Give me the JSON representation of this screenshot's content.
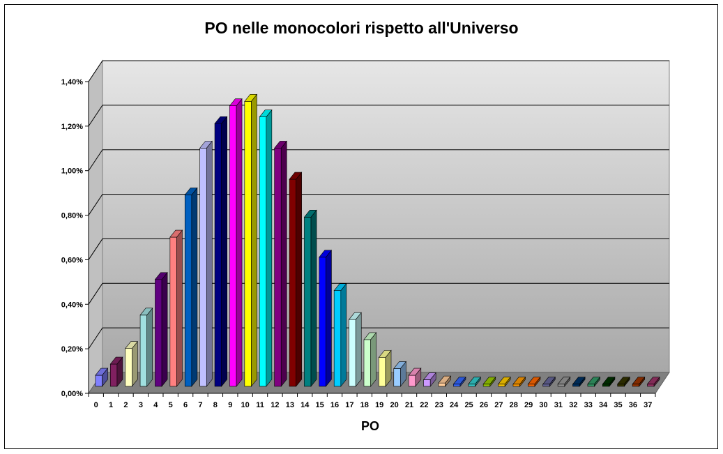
{
  "chart_data": {
    "type": "bar",
    "title": "PO nelle monocolori rispetto all'Universo",
    "xlabel": "PO",
    "ylabel": "",
    "ylim": [
      0,
      1.4
    ],
    "y_ticks": [
      "0,00%",
      "0,20%",
      "0,40%",
      "0,60%",
      "0,80%",
      "1,00%",
      "1,20%",
      "1,40%"
    ],
    "y_tick_values": [
      0,
      0.2,
      0.4,
      0.6,
      0.8,
      1.0,
      1.2,
      1.4
    ],
    "grid": true,
    "legend": "none",
    "categories": [
      "0",
      "1",
      "2",
      "3",
      "4",
      "5",
      "6",
      "7",
      "8",
      "9",
      "10",
      "11",
      "12",
      "13",
      "14",
      "15",
      "16",
      "17",
      "18",
      "19",
      "20",
      "21",
      "22",
      "23",
      "24",
      "25",
      "26",
      "27",
      "28",
      "29",
      "30",
      "31",
      "32",
      "33",
      "34",
      "35",
      "36",
      "37"
    ],
    "values": [
      0.05,
      0.1,
      0.17,
      0.32,
      0.48,
      0.67,
      0.86,
      1.07,
      1.18,
      1.26,
      1.28,
      1.21,
      1.07,
      0.93,
      0.76,
      0.58,
      0.43,
      0.3,
      0.21,
      0.13,
      0.08,
      0.05,
      0.03,
      0.015,
      0.01,
      0.01,
      0.01,
      0.01,
      0.01,
      0.01,
      0.01,
      0.01,
      0.01,
      0.01,
      0.01,
      0.01,
      0.01,
      0.01
    ],
    "colors": [
      "#8080ff",
      "#802060",
      "#ffffc0",
      "#a0e0e0",
      "#600080",
      "#ff8080",
      "#0060c0",
      "#c0c0ff",
      "#000080",
      "#ff00ff",
      "#ffff00",
      "#00ffff",
      "#800080",
      "#800000",
      "#008080",
      "#0000ff",
      "#00ccff",
      "#ccffff",
      "#ccffcc",
      "#ffff99",
      "#99ccff",
      "#ff99cc",
      "#cc99ff",
      "#ffcc99",
      "#3366ff",
      "#33cccc",
      "#99cc00",
      "#ffcc00",
      "#ff9900",
      "#ff6600",
      "#666699",
      "#969696",
      "#003366",
      "#339966",
      "#003300",
      "#333300",
      "#993300",
      "#993366"
    ]
  }
}
